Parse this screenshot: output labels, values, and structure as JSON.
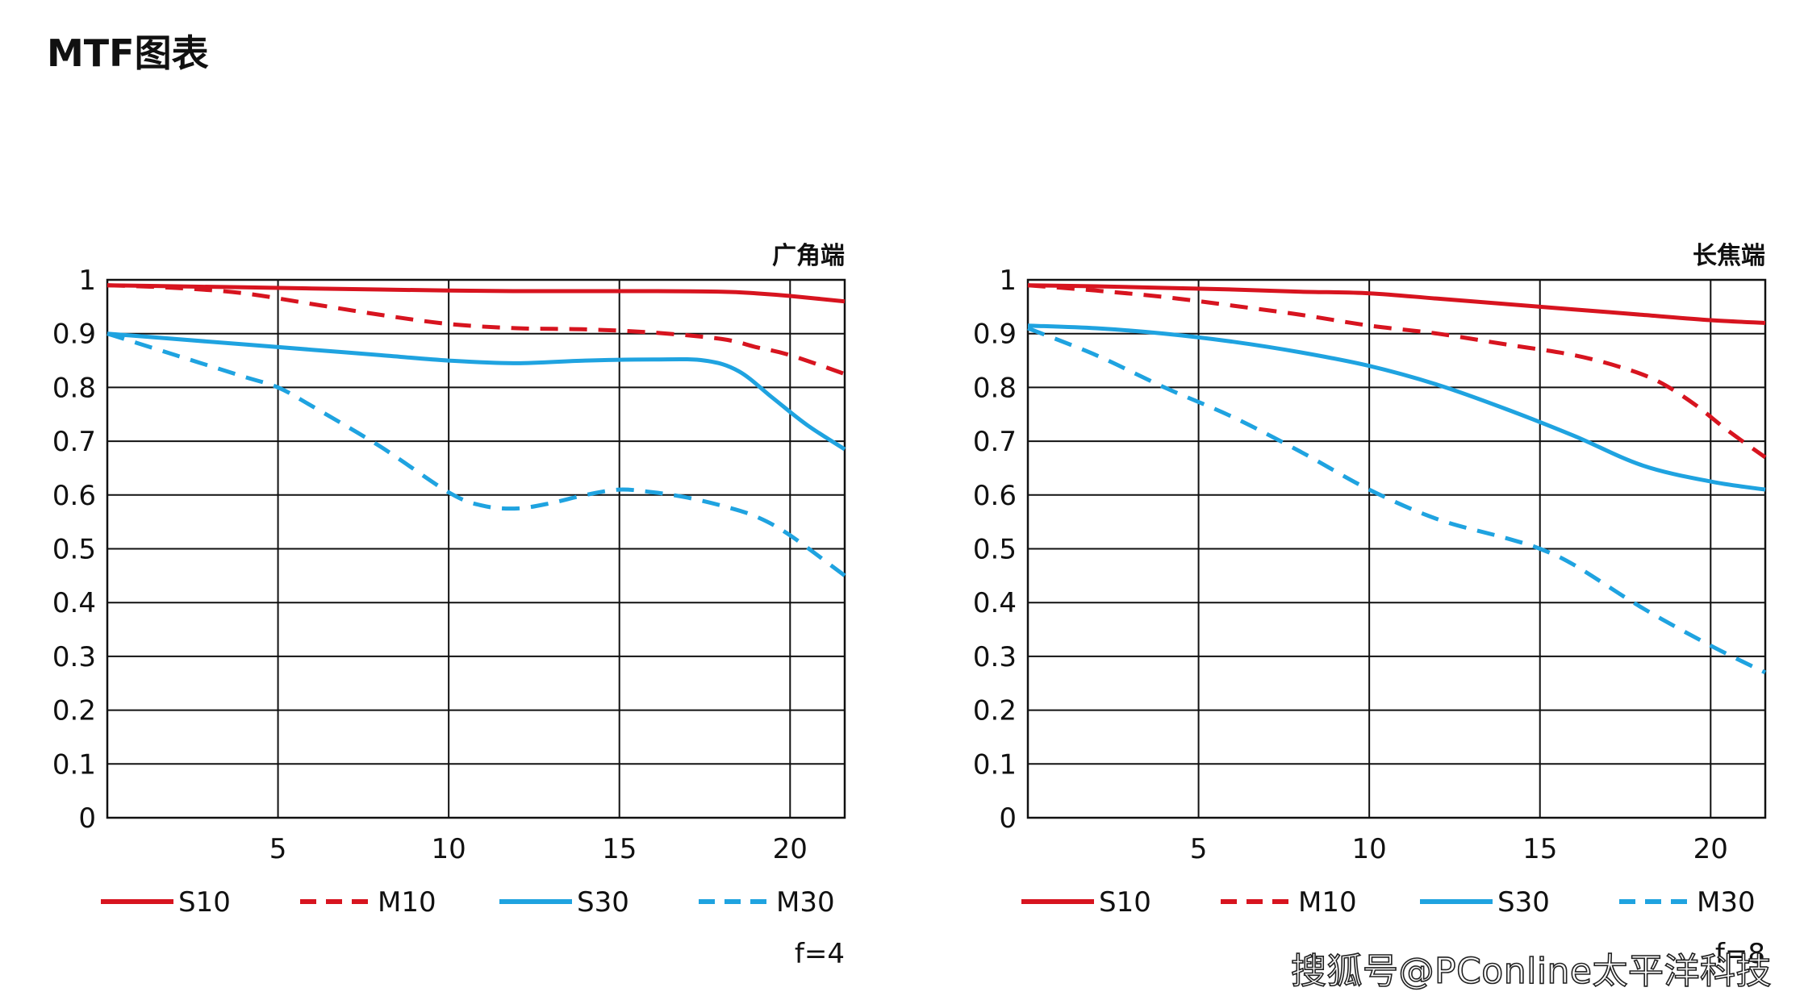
{
  "page": {
    "title": "MTF图表",
    "watermark": "搜狐号@PConline太平洋科技"
  },
  "colors": {
    "s10": "#d7141f",
    "m10": "#d7141f",
    "s30": "#1fa3e0",
    "m30": "#1fa3e0",
    "grid": "#111111"
  },
  "chart_data": [
    {
      "type": "line",
      "title": "广角端",
      "footer": "f=4",
      "xlim": [
        0,
        21.6
      ],
      "ylim": [
        0,
        1
      ],
      "x_ticks": [
        "5",
        "10",
        "15",
        "20"
      ],
      "y_ticks": [
        "0",
        "0.1",
        "0.2",
        "0.3",
        "0.4",
        "0.5",
        "0.6",
        "0.7",
        "0.8",
        "0.9",
        "1"
      ],
      "grid": true,
      "legend_position": "bottom",
      "series": [
        {
          "name": "S10",
          "style": "solid",
          "color": "#d7141f",
          "x": [
            0,
            2,
            4,
            6,
            8,
            10,
            12,
            14,
            16,
            18,
            19,
            20,
            21.6
          ],
          "y": [
            0.99,
            0.988,
            0.986,
            0.984,
            0.982,
            0.98,
            0.979,
            0.979,
            0.979,
            0.978,
            0.975,
            0.97,
            0.96
          ]
        },
        {
          "name": "M10",
          "style": "dashed",
          "color": "#d7141f",
          "x": [
            0,
            2,
            4,
            6,
            8,
            10,
            12,
            14,
            16,
            18,
            19,
            20,
            21.6
          ],
          "y": [
            0.99,
            0.985,
            0.975,
            0.955,
            0.935,
            0.918,
            0.91,
            0.908,
            0.902,
            0.89,
            0.875,
            0.86,
            0.825
          ]
        },
        {
          "name": "S30",
          "style": "solid",
          "color": "#1fa3e0",
          "x": [
            0,
            2,
            4,
            6,
            8,
            10,
            12,
            14,
            16,
            17.5,
            18.5,
            19.5,
            20.5,
            21.6
          ],
          "y": [
            0.9,
            0.89,
            0.88,
            0.87,
            0.86,
            0.85,
            0.845,
            0.85,
            0.852,
            0.85,
            0.83,
            0.78,
            0.73,
            0.685
          ]
        },
        {
          "name": "M30",
          "style": "dashed",
          "color": "#1fa3e0",
          "x": [
            0,
            2,
            4,
            5,
            6,
            8,
            10,
            11,
            12,
            13,
            14,
            15,
            16,
            17,
            18,
            19,
            20,
            21.6
          ],
          "y": [
            0.9,
            0.86,
            0.82,
            0.8,
            0.765,
            0.69,
            0.605,
            0.58,
            0.575,
            0.585,
            0.6,
            0.61,
            0.605,
            0.595,
            0.58,
            0.56,
            0.525,
            0.45
          ]
        }
      ]
    },
    {
      "type": "line",
      "title": "长焦端",
      "footer": "f=8",
      "xlim": [
        0,
        21.6
      ],
      "ylim": [
        0,
        1
      ],
      "x_ticks": [
        "5",
        "10",
        "15",
        "20"
      ],
      "y_ticks": [
        "0",
        "0.1",
        "0.2",
        "0.3",
        "0.4",
        "0.5",
        "0.6",
        "0.7",
        "0.8",
        "0.9",
        "1"
      ],
      "grid": true,
      "legend_position": "bottom",
      "series": [
        {
          "name": "S10",
          "style": "solid",
          "color": "#d7141f",
          "x": [
            0,
            2,
            4,
            6,
            8,
            10,
            12,
            14,
            16,
            18,
            20,
            21.6
          ],
          "y": [
            0.99,
            0.988,
            0.985,
            0.982,
            0.978,
            0.975,
            0.965,
            0.955,
            0.945,
            0.935,
            0.925,
            0.92
          ]
        },
        {
          "name": "M10",
          "style": "dashed",
          "color": "#d7141f",
          "x": [
            0,
            2,
            4,
            6,
            8,
            10,
            12,
            14,
            16,
            17.5,
            18.5,
            19.5,
            20.5,
            21.6
          ],
          "y": [
            0.99,
            0.98,
            0.968,
            0.952,
            0.935,
            0.915,
            0.9,
            0.88,
            0.86,
            0.835,
            0.81,
            0.77,
            0.72,
            0.67
          ]
        },
        {
          "name": "S30",
          "style": "solid",
          "color": "#1fa3e0",
          "x": [
            0,
            2,
            4,
            6,
            8,
            10,
            12,
            14,
            16,
            18,
            20,
            21.6
          ],
          "y": [
            0.915,
            0.91,
            0.9,
            0.885,
            0.865,
            0.84,
            0.805,
            0.76,
            0.71,
            0.655,
            0.625,
            0.61
          ]
        },
        {
          "name": "M30",
          "style": "dashed",
          "color": "#1fa3e0",
          "x": [
            0,
            2,
            4,
            6,
            8,
            10,
            12,
            14,
            15,
            16,
            18,
            20,
            21.6
          ],
          "y": [
            0.91,
            0.86,
            0.8,
            0.745,
            0.68,
            0.61,
            0.555,
            0.52,
            0.5,
            0.47,
            0.39,
            0.32,
            0.27
          ]
        }
      ]
    }
  ]
}
